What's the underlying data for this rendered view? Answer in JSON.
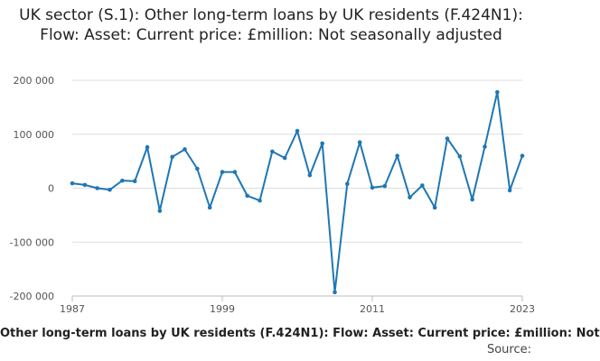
{
  "chart_data": {
    "type": "line",
    "title": "UK sector (S.1): Other long-term loans by UK residents (F.424N1): Flow: Asset: Current price: £million: Not seasonally adjusted",
    "footer_label": "Other long-term loans by UK residents (F.424N1): Flow: Asset: Current price: £million: Not",
    "source_label": "Source:",
    "xlabel": "",
    "ylabel": "",
    "ylim": [
      -200000,
      200000
    ],
    "y_ticks": [
      -200000,
      -100000,
      0,
      100000,
      200000
    ],
    "y_tick_labels": [
      "-200 000",
      "-100 000",
      "0",
      "100 000",
      "200 000"
    ],
    "xlim": [
      1987,
      2023
    ],
    "x_ticks": [
      1987,
      1999,
      2011,
      2023
    ],
    "x_tick_labels": [
      "1987",
      "1999",
      "2011",
      "2023"
    ],
    "grid": "horizontal",
    "line_color": "#1f77b4",
    "series": [
      {
        "x": [
          1987,
          1988,
          1989,
          1990,
          1991,
          1992,
          1993,
          1994,
          1995,
          1996,
          1997,
          1998,
          1999,
          2000,
          2001,
          2002,
          2003,
          2004,
          2005,
          2006,
          2007,
          2008,
          2009,
          2010,
          2011,
          2012,
          2013,
          2014,
          2015,
          2016,
          2017,
          2018,
          2019,
          2020,
          2021,
          2022,
          2023
        ],
        "values": [
          9000,
          6000,
          0,
          -3000,
          14000,
          13000,
          76000,
          -42000,
          58000,
          72000,
          36000,
          -36000,
          30000,
          30000,
          -14000,
          -23000,
          68000,
          56000,
          106000,
          24000,
          83000,
          -193000,
          8000,
          85000,
          1000,
          4000,
          60000,
          -17000,
          5000,
          -36000,
          92000,
          59000,
          -21000,
          77000,
          178000,
          -4000,
          60000
        ]
      }
    ]
  }
}
